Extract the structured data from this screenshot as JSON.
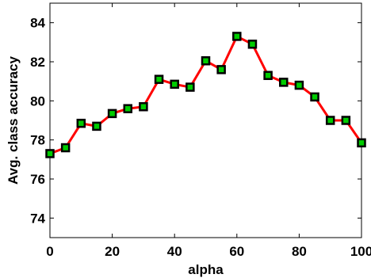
{
  "chart_data": {
    "type": "line",
    "title": "",
    "xlabel": "alpha",
    "ylabel": "Avg. class accuracy",
    "xlim": [
      0,
      100
    ],
    "ylim": [
      73,
      85
    ],
    "xticks": [
      0,
      20,
      40,
      60,
      80,
      100
    ],
    "yticks": [
      74,
      76,
      78,
      80,
      82,
      84
    ],
    "grid": false,
    "series": [
      {
        "x": [
          0,
          5,
          10,
          15,
          20,
          25,
          30,
          35,
          40,
          45,
          50,
          55,
          60,
          65,
          70,
          75,
          80,
          85,
          90,
          95,
          100
        ],
        "values": [
          77.3,
          77.6,
          78.85,
          78.7,
          79.35,
          79.6,
          79.7,
          81.1,
          80.85,
          80.7,
          82.05,
          81.6,
          83.3,
          82.9,
          81.3,
          80.95,
          80.8,
          80.2,
          79.0,
          79.0,
          77.85
        ],
        "line_color": "#ff0000",
        "marker_fill": "#00cc00",
        "marker_edge": "#000000"
      }
    ]
  }
}
